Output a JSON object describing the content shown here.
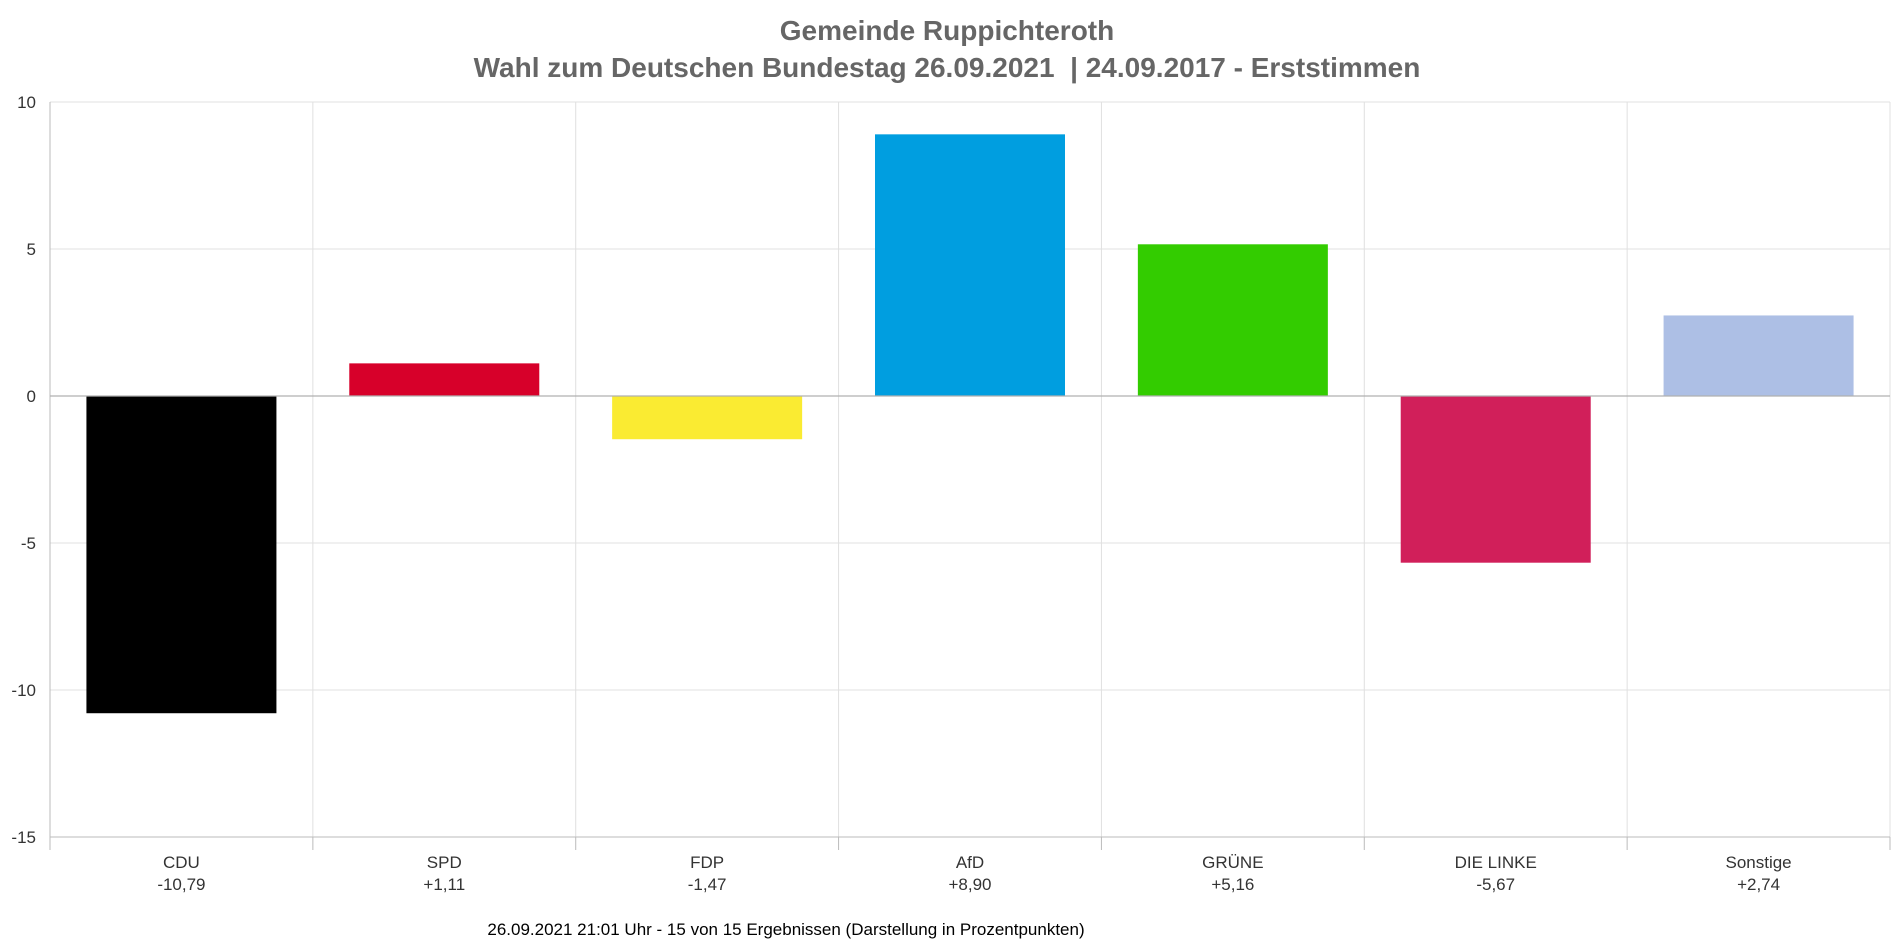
{
  "chart_data": {
    "type": "bar",
    "title": "Gemeinde Ruppichteroth",
    "subtitle": "Wahl zum Deutschen Bundestag 26.09.2021  | 24.09.2017 - Erststimmen",
    "categories": [
      "CDU",
      "SPD",
      "FDP",
      "AfD",
      "GRÜNE",
      "DIE LINKE",
      "Sonstige"
    ],
    "value_labels": [
      "-10,79",
      "+1,11",
      "-1,47",
      "+8,90",
      "+5,16",
      "-5,67",
      "+2,74"
    ],
    "values": [
      -10.79,
      1.11,
      -1.47,
      8.9,
      5.16,
      -5.67,
      2.74
    ],
    "colors": [
      "#000000",
      "#d7002a",
      "#faeb32",
      "#009ee0",
      "#33cc00",
      "#d11f5a",
      "#adbfe5"
    ],
    "ylim": [
      -15,
      10
    ],
    "yticks": [
      "10",
      "5",
      "0",
      "-5",
      "-10",
      "-15"
    ],
    "ytick_values": [
      10,
      5,
      0,
      -5,
      -10,
      -15
    ],
    "grid": true,
    "footer": "26.09.2021 21:01 Uhr - 15 von 15 Ergebnissen (Darstellung in Prozentpunkten)"
  }
}
